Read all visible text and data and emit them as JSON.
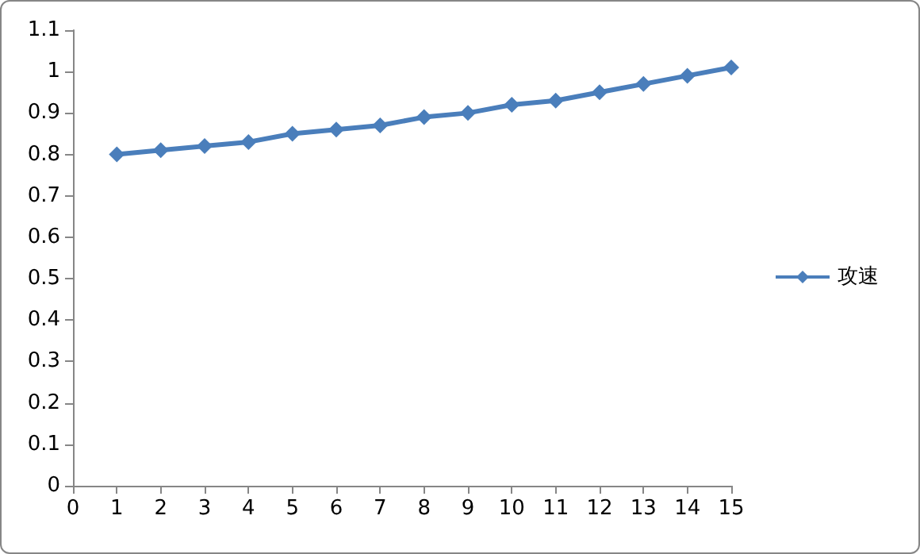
{
  "chart_data": {
    "type": "line",
    "x": [
      1,
      2,
      3,
      4,
      5,
      6,
      7,
      8,
      9,
      10,
      11,
      12,
      13,
      14,
      15
    ],
    "series": [
      {
        "name": "攻速",
        "color": "#4a7ebb",
        "values": [
          0.8,
          0.81,
          0.82,
          0.83,
          0.85,
          0.86,
          0.87,
          0.89,
          0.9,
          0.92,
          0.93,
          0.95,
          0.97,
          0.99,
          1.01
        ]
      }
    ],
    "xlim": [
      0,
      15
    ],
    "xticks": [
      0,
      1,
      2,
      3,
      4,
      5,
      6,
      7,
      8,
      9,
      10,
      11,
      12,
      13,
      14,
      15
    ],
    "ylim": [
      0,
      1.1
    ],
    "yticks": [
      0,
      0.1,
      0.2,
      0.3,
      0.4,
      0.5,
      0.6,
      0.7,
      0.8,
      0.9,
      1,
      1.1
    ],
    "grid": false,
    "legend": "right",
    "marker": "diamond",
    "line_style": "solid"
  }
}
